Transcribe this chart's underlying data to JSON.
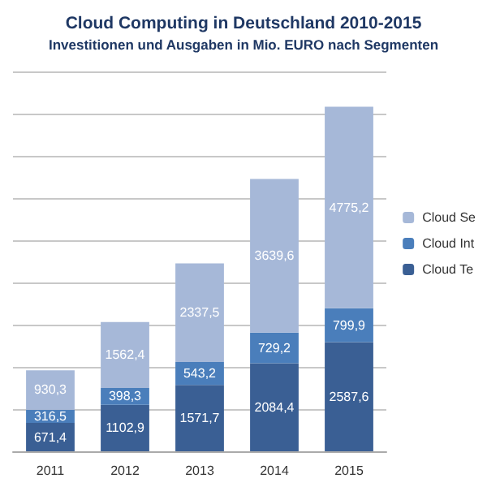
{
  "chart_data": {
    "type": "bar",
    "title": "Cloud Computing in Deutschland 2010-2015",
    "subtitle": "Investitionen und Ausgaben in Mio. EURO nach Segmenten",
    "categories": [
      "2011",
      "2012",
      "2013",
      "2014",
      "2015"
    ],
    "stacked": true,
    "series": [
      {
        "name": "Cloud Te",
        "color": "#3a5f94",
        "values": [
          671.4,
          1102.9,
          1571.7,
          2084.4,
          2587.6
        ],
        "value_labels": [
          "671,4",
          "1102,9",
          "1571,7",
          "2084,4",
          "2587,6"
        ]
      },
      {
        "name": "Cloud Int",
        "color": "#4a7ebb",
        "values": [
          316.5,
          398.3,
          543.2,
          729.2,
          799.9
        ],
        "value_labels": [
          "316,5",
          "398,3",
          "543,2",
          "729,2",
          "799,9"
        ]
      },
      {
        "name": "Cloud Se",
        "color": "#a6b8d8",
        "values": [
          930.3,
          1562.4,
          2337.5,
          3639.6,
          4775.2
        ],
        "value_labels": [
          "930,3",
          "1562,4",
          "2337,5",
          "3639,6",
          "4775,2"
        ]
      }
    ],
    "ylim": [
      0,
      9000
    ],
    "yticks": [
      {
        "value": 0,
        "label": null
      },
      {
        "value": 1000,
        "label": null
      },
      {
        "value": 2000,
        "label": null
      },
      {
        "value": 3000,
        "label": null
      },
      {
        "value": 4000,
        "label": null
      },
      {
        "value": 5000,
        "label": null
      },
      {
        "value": 6000,
        "label": null
      },
      {
        "value": 7000,
        "label": null
      },
      {
        "value": 8000,
        "label": null
      },
      {
        "value": 9000,
        "label": null
      }
    ],
    "grid": "y",
    "legend": "right",
    "tick_labels": "x"
  }
}
